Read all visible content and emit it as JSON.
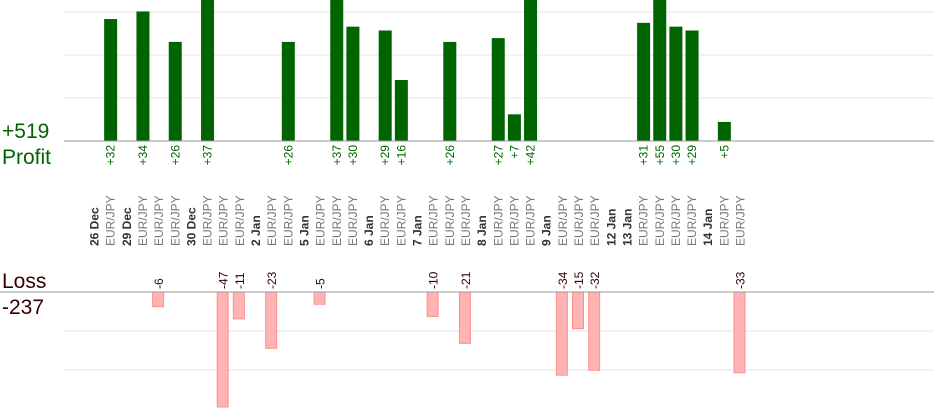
{
  "chart_data": {
    "type": "bar",
    "profit_total": "+519",
    "profit_label": "Profit",
    "loss_label": "Loss",
    "loss_total": "-237",
    "colors": {
      "profit": "#006400",
      "loss": "#ffb3b3",
      "loss_text": "#330000",
      "grid": "#e4e4e4",
      "axis": "#999999"
    },
    "trade_label": "EUR/JPY",
    "profit_ylim": [
      0,
      37
    ],
    "loss_ylim": [
      0,
      47
    ],
    "slots": [
      {
        "date": "26 Dec",
        "trades": [
          32
        ]
      },
      {
        "date": "29 Dec",
        "trades": [
          34,
          -6,
          26
        ]
      },
      {
        "date": "30 Dec",
        "trades": [
          37,
          -47,
          -11
        ]
      },
      {
        "date": "2 Jan",
        "trades": [
          -23,
          26
        ]
      },
      {
        "date": "5 Jan",
        "trades": [
          -5,
          37,
          30
        ]
      },
      {
        "date": "6 Jan",
        "trades": [
          29,
          16
        ]
      },
      {
        "date": "7 Jan",
        "trades": [
          -10,
          26,
          -21
        ]
      },
      {
        "date": "8 Jan",
        "trades": [
          27,
          7,
          42
        ]
      },
      {
        "date": "9 Jan",
        "trades": [
          -34,
          -15,
          -32
        ]
      },
      {
        "date": "12 Jan",
        "trades": []
      },
      {
        "date": "13 Jan",
        "trades": [
          31,
          55,
          30,
          29
        ]
      },
      {
        "date": "14 Jan",
        "trades": [
          5,
          -33
        ]
      }
    ]
  }
}
